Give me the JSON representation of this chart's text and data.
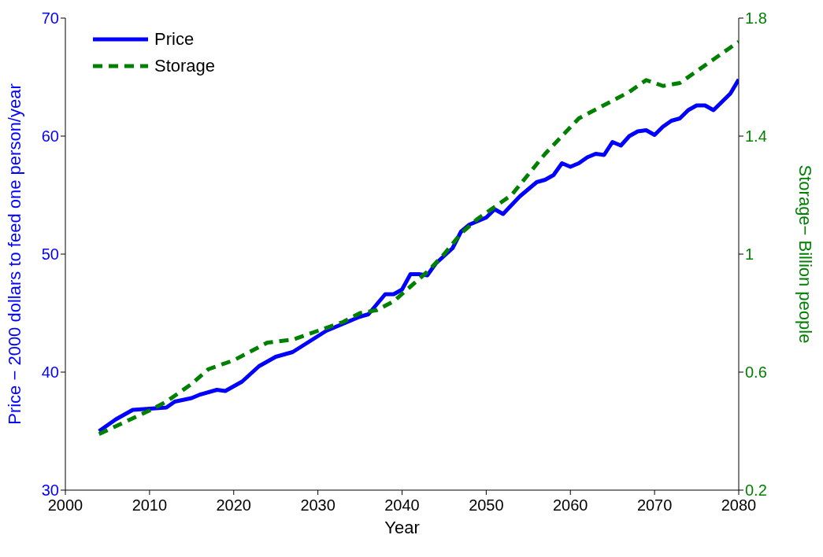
{
  "chart_data": {
    "type": "line",
    "xlabel": "Year",
    "ylabel": "Price − 2000 dollars to feed one person/year",
    "y2label": "Storage− Billion people",
    "xlim": [
      2000,
      2080
    ],
    "xticks": [
      2000,
      2010,
      2020,
      2030,
      2040,
      2050,
      2060,
      2070,
      2080
    ],
    "ylim": [
      30,
      70
    ],
    "yticks": [
      30,
      40,
      50,
      60,
      70
    ],
    "y2lim": [
      0.2,
      1.8
    ],
    "y2ticks": [
      0.2,
      0.6,
      1,
      1.4,
      1.8
    ],
    "legend": "top left",
    "grid": false,
    "marker": "none",
    "series": [
      {
        "name": "Price",
        "color": "#0000ff",
        "line_style": "solid",
        "x": [
          2004,
          2006,
          2008,
          2010,
          2012,
          2013,
          2015,
          2016,
          2018,
          2019,
          2021,
          2023,
          2025,
          2027,
          2029,
          2031,
          2033,
          2035,
          2036,
          2038,
          2039,
          2040,
          2041,
          2042,
          2043,
          2044,
          2046,
          2047,
          2048,
          2050,
          2051,
          2052,
          2054,
          2056,
          2057,
          2058,
          2059,
          2060,
          2061,
          2062,
          2063,
          2064,
          2065,
          2066,
          2067,
          2068,
          2069,
          2070,
          2071,
          2072,
          2073,
          2074,
          2075,
          2076,
          2077,
          2078,
          2079,
          2080
        ],
        "values": [
          35.0,
          36.0,
          36.8,
          36.9,
          37.0,
          37.5,
          37.8,
          38.1,
          38.5,
          38.4,
          39.2,
          40.5,
          41.3,
          41.7,
          42.6,
          43.5,
          44.1,
          44.7,
          44.9,
          46.6,
          46.6,
          47.0,
          48.3,
          48.3,
          48.2,
          49.2,
          50.5,
          51.9,
          52.5,
          53.1,
          53.8,
          53.4,
          54.9,
          56.1,
          56.3,
          56.7,
          57.7,
          57.4,
          57.7,
          58.2,
          58.5,
          58.4,
          59.5,
          59.2,
          60.0,
          60.4,
          60.5,
          60.1,
          60.8,
          61.3,
          61.5,
          62.2,
          62.6,
          62.6,
          62.2,
          62.9,
          63.6,
          64.8
        ]
      },
      {
        "name": "Storage",
        "color": "#008000",
        "line_style": "dashed",
        "axis": "y2",
        "x": [
          2004,
          2007,
          2010,
          2012,
          2015,
          2017,
          2020,
          2022,
          2024,
          2027,
          2030,
          2033,
          2035,
          2037,
          2039,
          2041,
          2043,
          2045,
          2047,
          2049,
          2051,
          2053,
          2055,
          2057,
          2059,
          2061,
          2063,
          2065,
          2067,
          2069,
          2071,
          2073,
          2075,
          2077,
          2079,
          2080
        ],
        "values": [
          0.39,
          0.43,
          0.47,
          0.5,
          0.56,
          0.61,
          0.64,
          0.67,
          0.7,
          0.71,
          0.74,
          0.77,
          0.8,
          0.81,
          0.84,
          0.89,
          0.94,
          1.0,
          1.07,
          1.12,
          1.16,
          1.2,
          1.27,
          1.34,
          1.4,
          1.46,
          1.49,
          1.52,
          1.55,
          1.59,
          1.57,
          1.58,
          1.62,
          1.66,
          1.7,
          1.72
        ]
      }
    ]
  }
}
